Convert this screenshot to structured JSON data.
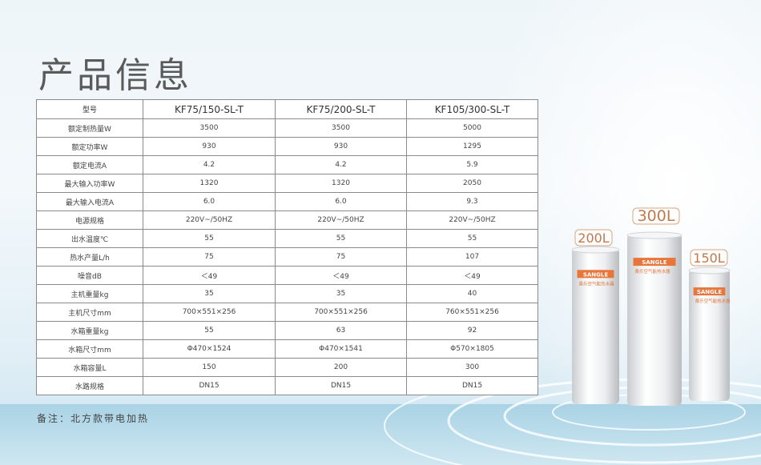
{
  "title": "产品信息",
  "table": {
    "header": [
      "型号",
      "KF75/150-SL-T",
      "KF75/200-SL-T",
      "KF105/300-SL-T"
    ],
    "rows": [
      [
        "额定制热量W",
        "3500",
        "3500",
        "5000"
      ],
      [
        "额定功率W",
        "930",
        "930",
        "1295"
      ],
      [
        "额定电流A",
        "4.2",
        "4.2",
        "5.9"
      ],
      [
        "最大输入功率W",
        "1320",
        "1320",
        "2050"
      ],
      [
        "最大输入电流A",
        "6.0",
        "6.0",
        "9.3"
      ],
      [
        "电源规格",
        "220V~/50HZ",
        "220V~/50HZ",
        "220V~/50HZ"
      ],
      [
        "出水温度℃",
        "55",
        "55",
        "55"
      ],
      [
        "热水产量L/h",
        "75",
        "75",
        "107"
      ],
      [
        "噪音dB",
        "＜49",
        "＜49",
        "＜49"
      ],
      [
        "主机重量kg",
        "35",
        "35",
        "40"
      ],
      [
        "主机尺寸mm",
        "700×551×256",
        "700×551×256",
        "760×551×256"
      ],
      [
        "水箱重量kg",
        "55",
        "63",
        "92"
      ],
      [
        "水箱尺寸mm",
        "Φ470×1524",
        "Φ470×1541",
        "Φ570×1805"
      ],
      [
        "水箱容量L",
        "150",
        "200",
        "300"
      ],
      [
        "水路规格",
        "DN15",
        "DN15",
        "DN15"
      ]
    ]
  },
  "note": "备注：北方款带电加热",
  "products": [
    {
      "capacity": "200L",
      "brand": "SANGLE",
      "label": "桑乐空气能热水器"
    },
    {
      "capacity": "300L",
      "brand": "SANGLE",
      "label": "桑乐空气能热水器"
    },
    {
      "capacity": "150L",
      "brand": "SANGLE",
      "label": "桑乐空气能热水器"
    }
  ],
  "colors": {
    "accent": "#e8753a",
    "border": "#8a8a8a",
    "title": "#5a5a5a"
  }
}
